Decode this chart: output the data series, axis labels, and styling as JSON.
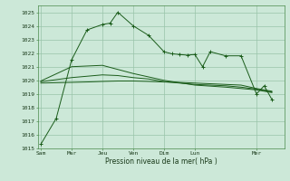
{
  "bg_color": "#cce8d8",
  "grid_color": "#99c4aa",
  "line_color": "#1a5c1a",
  "xlabel": "Pression niveau de la mer( hPa )",
  "ylim": [
    1015,
    1025.5
  ],
  "yticks": [
    1015,
    1016,
    1017,
    1018,
    1019,
    1020,
    1021,
    1022,
    1023,
    1024,
    1025
  ],
  "xtick_labels": [
    "Sam",
    "Mar",
    "Jeu",
    "Ven",
    "Dim",
    "Lun",
    "Mer"
  ],
  "xtick_positions": [
    0,
    2,
    4,
    6,
    8,
    10,
    14
  ],
  "xlim": [
    -0.2,
    15.8
  ],
  "series1_x": [
    0,
    1,
    2,
    3,
    4,
    4.5,
    5,
    6,
    7,
    8,
    8.5,
    9,
    9.5,
    10,
    10.5,
    11,
    12,
    13,
    14,
    14.5,
    15
  ],
  "series1_y": [
    1015.3,
    1017.2,
    1021.5,
    1023.7,
    1024.1,
    1024.2,
    1025.0,
    1024.0,
    1023.3,
    1022.1,
    1021.95,
    1021.9,
    1021.85,
    1021.9,
    1021.0,
    1022.1,
    1021.8,
    1021.8,
    1019.0,
    1019.6,
    1018.6
  ],
  "series2_x": [
    0,
    2,
    3,
    4,
    5,
    6,
    7,
    8,
    9,
    10,
    11,
    12,
    13,
    14,
    15
  ],
  "series2_y": [
    1019.8,
    1019.85,
    1019.88,
    1019.92,
    1019.95,
    1019.95,
    1019.92,
    1019.88,
    1019.85,
    1019.8,
    1019.75,
    1019.7,
    1019.65,
    1019.4,
    1019.2
  ],
  "series3_x": [
    0,
    2,
    4,
    5,
    6,
    7,
    8,
    9,
    10,
    11,
    12,
    13,
    14,
    15
  ],
  "series3_y": [
    1019.9,
    1020.2,
    1020.4,
    1020.35,
    1020.2,
    1020.1,
    1019.9,
    1019.8,
    1019.7,
    1019.65,
    1019.6,
    1019.5,
    1019.35,
    1019.15
  ],
  "series4_x": [
    0,
    2,
    4,
    6,
    8,
    10,
    12,
    14,
    15
  ],
  "series4_y": [
    1019.95,
    1021.0,
    1021.1,
    1020.5,
    1020.0,
    1019.65,
    1019.5,
    1019.3,
    1019.1
  ]
}
